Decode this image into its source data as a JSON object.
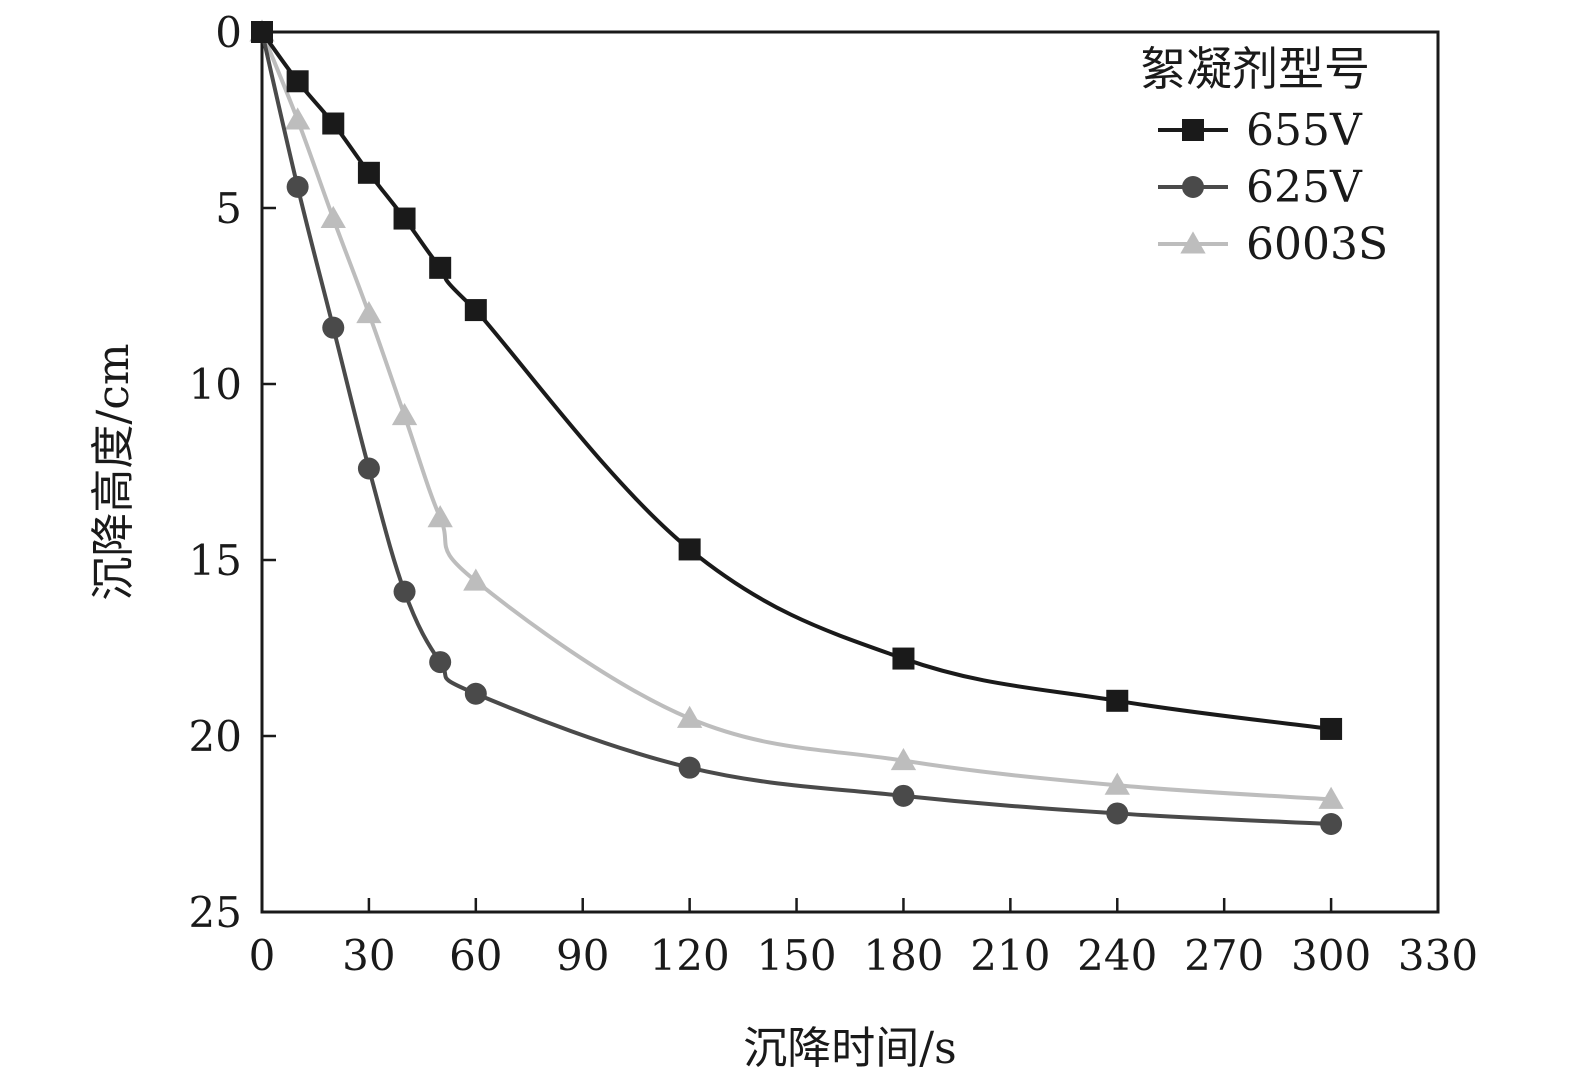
{
  "chart_data": {
    "type": "line",
    "xlabel": "沉降时间/s",
    "ylabel": "沉降高度/cm",
    "xlim": [
      0,
      330
    ],
    "ylim": [
      0,
      25
    ],
    "y_inverted": true,
    "x_ticks": [
      0,
      30,
      60,
      90,
      120,
      150,
      180,
      210,
      240,
      270,
      300,
      330
    ],
    "y_ticks": [
      0,
      5,
      10,
      15,
      20,
      25
    ],
    "x_tick_labels": [
      "0",
      "30",
      "60",
      "90",
      "120",
      "150",
      "180",
      "210",
      "240",
      "270",
      "300",
      "330"
    ],
    "y_tick_labels": [
      "0",
      "5",
      "10",
      "15",
      "20",
      "25"
    ],
    "grid": false,
    "legend": {
      "title": "絮凝剂型号",
      "position": "top-right"
    },
    "series": [
      {
        "name": "655V",
        "marker": "square",
        "color": "#1a1a1a",
        "x": [
          0,
          10,
          20,
          30,
          40,
          50,
          60,
          120,
          180,
          240,
          300
        ],
        "y": [
          0,
          1.4,
          2.6,
          4.0,
          5.3,
          6.7,
          7.9,
          14.7,
          17.8,
          19.0,
          19.8
        ]
      },
      {
        "name": "625V",
        "marker": "circle",
        "color": "#4a4a4a",
        "x": [
          0,
          10,
          20,
          30,
          40,
          50,
          60,
          120,
          180,
          240,
          300
        ],
        "y": [
          0,
          4.4,
          8.4,
          12.4,
          15.9,
          17.9,
          18.8,
          20.9,
          21.7,
          22.2,
          22.5
        ]
      },
      {
        "name": "6003S",
        "marker": "triangle",
        "color": "#bdbdbd",
        "x": [
          0,
          10,
          20,
          30,
          40,
          50,
          60,
          120,
          180,
          240,
          300
        ],
        "y": [
          0,
          2.5,
          5.3,
          8.0,
          10.9,
          13.8,
          15.6,
          19.5,
          20.7,
          21.4,
          21.8
        ]
      }
    ]
  }
}
